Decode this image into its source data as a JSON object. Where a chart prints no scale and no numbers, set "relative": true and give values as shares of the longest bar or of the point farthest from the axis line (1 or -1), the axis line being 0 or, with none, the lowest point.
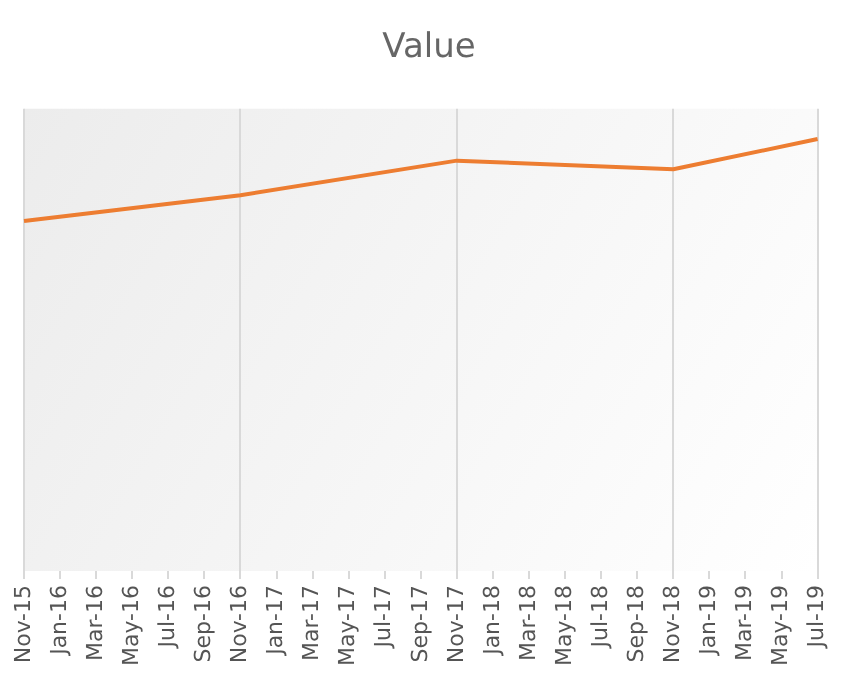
{
  "chart_data": {
    "type": "line",
    "title": "Value",
    "relative": true,
    "grid": "x",
    "marker": "none",
    "line_style": "solid",
    "categories": [
      "Nov-15",
      "Jan-16",
      "Mar-16",
      "May-16",
      "Jul-16",
      "Sep-16",
      "Nov-16",
      "Jan-17",
      "Mar-17",
      "May-17",
      "Jul-17",
      "Sep-17",
      "Nov-17",
      "Jan-18",
      "Mar-18",
      "May-18",
      "Jul-18",
      "Sep-18",
      "Nov-18",
      "Jan-19",
      "Mar-19",
      "May-19",
      "Jul-19"
    ],
    "series": [
      {
        "color": "#ed7d31",
        "values": [
          0.81,
          null,
          null,
          null,
          null,
          null,
          0.87,
          null,
          null,
          null,
          null,
          null,
          0.95,
          null,
          null,
          null,
          null,
          null,
          0.93,
          null,
          null,
          null,
          1
        ]
      }
    ]
  }
}
